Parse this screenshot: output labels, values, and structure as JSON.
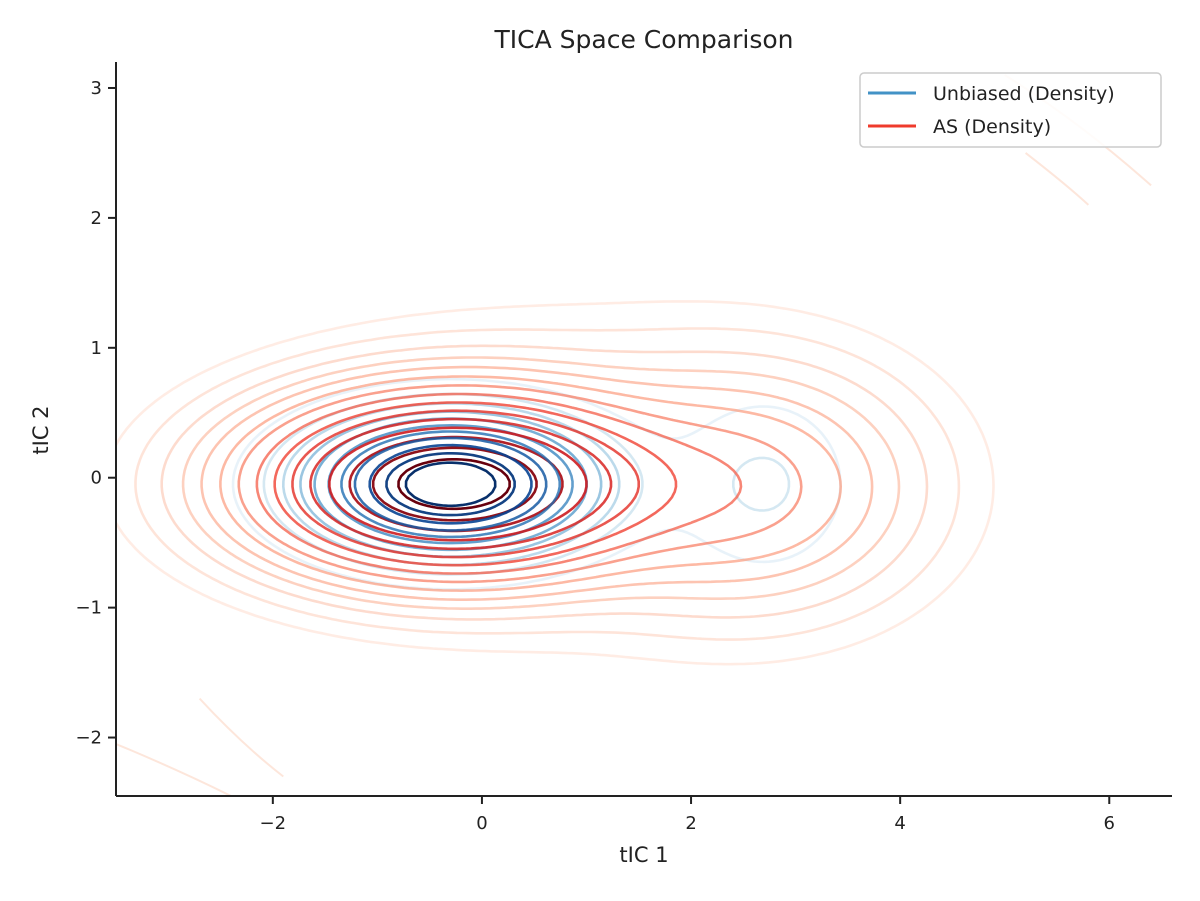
{
  "chart_data": {
    "type": "contour",
    "title": "TICA Space Comparison",
    "xlabel": "tIC 1",
    "ylabel": "tIC 2",
    "xlim": [
      -3.5,
      6.6
    ],
    "ylim": [
      -2.45,
      3.2
    ],
    "xticks": [
      -2,
      0,
      2,
      4,
      6
    ],
    "yticks": [
      -2,
      -1,
      0,
      1,
      2,
      3
    ],
    "xtick_labels": [
      "−2",
      "0",
      "2",
      "4",
      "6"
    ],
    "ytick_labels": [
      "−2",
      "−1",
      "0",
      "1",
      "2",
      "3"
    ],
    "grid": false,
    "legend_position": "top-right",
    "series": [
      {
        "name": "Unbiased (Density)",
        "color": "#4292c6",
        "colormap": "Blues",
        "components": [
          {
            "mx": -0.3,
            "my": -0.05,
            "sx": 0.85,
            "sy": 0.33,
            "w": 1.0
          },
          {
            "mx": 2.7,
            "my": -0.05,
            "sx": 0.55,
            "sy": 0.45,
            "w": 0.12
          }
        ],
        "levels": [
          0.05,
          0.11,
          0.17,
          0.24,
          0.31,
          0.39,
          0.47,
          0.56,
          0.66,
          0.77,
          0.88
        ]
      },
      {
        "name": "AS (Density)",
        "color": "#ef3b2c",
        "colormap": "Reds",
        "components": [
          {
            "mx": -0.3,
            "my": -0.05,
            "sx": 1.1,
            "sy": 0.4,
            "w": 1.0
          },
          {
            "mx": 2.6,
            "my": -0.08,
            "sx": 0.95,
            "sy": 0.55,
            "w": 0.18
          },
          {
            "mx": 0.9,
            "my": 0.05,
            "sx": 1.6,
            "sy": 0.7,
            "w": 0.05
          }
        ],
        "levels": [
          0.012,
          0.025,
          0.045,
          0.07,
          0.1,
          0.14,
          0.19,
          0.25,
          0.32,
          0.4,
          0.49,
          0.59,
          0.7,
          0.82,
          0.93
        ]
      }
    ],
    "faint_tail_contours": [
      {
        "series": "AS (Density)",
        "points": [
          [
            -3.5,
            -2.05
          ],
          [
            -2.9,
            -2.25
          ],
          [
            -2.4,
            -2.45
          ]
        ]
      },
      {
        "series": "AS (Density)",
        "points": [
          [
            -2.7,
            -1.7
          ],
          [
            -2.3,
            -2.05
          ],
          [
            -1.9,
            -2.3
          ]
        ]
      },
      {
        "series": "AS (Density)",
        "points": [
          [
            5.0,
            3.1
          ],
          [
            5.7,
            2.75
          ],
          [
            6.4,
            2.25
          ]
        ]
      },
      {
        "series": "AS (Density)",
        "points": [
          [
            5.2,
            2.5
          ],
          [
            5.6,
            2.25
          ],
          [
            5.8,
            2.1
          ]
        ]
      }
    ]
  }
}
